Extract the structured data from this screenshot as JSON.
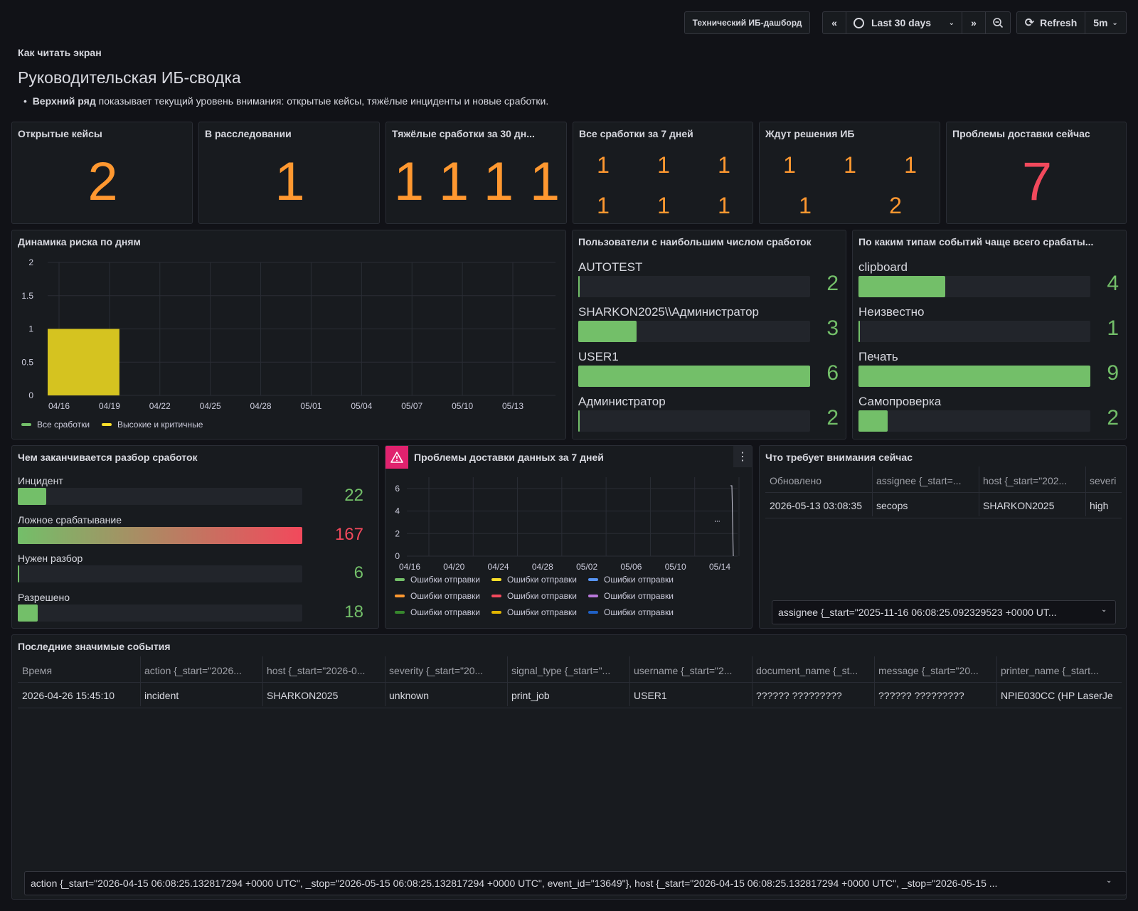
{
  "toolbar": {
    "dashboard_link": "Технический ИБ-дашборд",
    "time_range": "Last 30 days",
    "refresh_label": "Refresh",
    "refresh_interval": "5m"
  },
  "intro": {
    "section_label": "Как читать экран",
    "heading": "Руководительская ИБ-сводка",
    "bullet_bold": "Верхний ряд",
    "bullet_text": " показывает текущий уровень внимания: открытые кейсы, тяжёлые инциденты и новые сработки."
  },
  "stats": {
    "open_cases": {
      "title": "Открытые кейсы",
      "value": "2"
    },
    "investigating": {
      "title": "В расследовании",
      "value": "1"
    },
    "severe": {
      "title": "Тяжёлые сработки за 30 дн...",
      "values": [
        "1",
        "1",
        "1",
        "1"
      ]
    },
    "all7": {
      "title": "Все сработки за 7 дней",
      "values": [
        "1",
        "1",
        "1",
        "1",
        "1",
        "1"
      ]
    },
    "waiting": {
      "title": "Ждут решения ИБ",
      "values": [
        "1",
        "1",
        "1",
        "1",
        "2"
      ]
    },
    "delivery": {
      "title": "Проблемы доставки сейчас",
      "value": "7"
    }
  },
  "colors": {
    "orange": "#ff9830",
    "red": "#f2495c",
    "green": "#73bf69",
    "yellow": "#d5c320"
  },
  "risk_chart": {
    "title": "Динамика риска по дням",
    "chart_data": {
      "type": "bar",
      "x_ticks": [
        "04/16",
        "04/19",
        "04/22",
        "04/25",
        "04/28",
        "05/01",
        "05/04",
        "05/07",
        "05/10",
        "05/13"
      ],
      "y_ticks": [
        "0",
        "0.5",
        "1",
        "1.5",
        "2"
      ],
      "ylim": [
        0,
        2
      ],
      "bars": [
        {
          "start": "04/16",
          "end": "04/19",
          "value": 1,
          "series": "Высокие и критичные"
        }
      ],
      "series": [
        {
          "name": "Все сработки",
          "color": "#73bf69"
        },
        {
          "name": "Высокие и критичные",
          "color": "#fade2a"
        }
      ]
    }
  },
  "top_users": {
    "title": "Пользователи с наибольшим числом сработок",
    "max": 6,
    "items": [
      {
        "label": "AUTOTEST",
        "value": "2",
        "fraction": 0
      },
      {
        "label": "SHARKON2025\\\\Администратор",
        "value": "3",
        "fraction": 0.25
      },
      {
        "label": "USER1",
        "value": "6",
        "fraction": 1
      },
      {
        "label": "Администратор",
        "value": "2",
        "fraction": 0
      }
    ]
  },
  "event_types": {
    "title": "По каким типам событий чаще всего срабаты...",
    "items": [
      {
        "label": "clipboard",
        "value": "4",
        "fraction": 0.375
      },
      {
        "label": "Неизвестно",
        "value": "1",
        "fraction": 0
      },
      {
        "label": "Печать",
        "value": "9",
        "fraction": 1
      },
      {
        "label": "Самопроверка",
        "value": "2",
        "fraction": 0.125
      }
    ]
  },
  "resolution": {
    "title": "Чем заканчивается разбор сработок",
    "items": [
      {
        "label": "Инцидент",
        "value": "22",
        "fraction": 0.1,
        "color": "#73bf69"
      },
      {
        "label": "Ложное срабатывание",
        "value": "167",
        "fraction": 1,
        "color": "#f2495c"
      },
      {
        "label": "Нужен разбор",
        "value": "6",
        "fraction": 0,
        "color": "#73bf69"
      },
      {
        "label": "Разрешено",
        "value": "18",
        "fraction": 0.07,
        "color": "#73bf69"
      }
    ]
  },
  "delivery_chart": {
    "title": "Проблемы доставки данных за 7 дней",
    "chart_data": {
      "type": "line",
      "x_ticks": [
        "04/16",
        "04/20",
        "04/24",
        "04/28",
        "05/02",
        "05/06",
        "05/10",
        "05/14"
      ],
      "y_ticks": [
        "0",
        "2",
        "4",
        "6"
      ],
      "ylim": [
        0,
        7
      ],
      "series": [
        {
          "name": "Ошибки отправки",
          "color": "#73bf69"
        },
        {
          "name": "Ошибки отправки",
          "color": "#fade2a"
        },
        {
          "name": "Ошибки отправки",
          "color": "#5794f2"
        },
        {
          "name": "Ошибки отправки",
          "color": "#ff9830"
        },
        {
          "name": "Ошибки отправки",
          "color": "#f2495c"
        },
        {
          "name": "Ошибки отправки",
          "color": "#b877d9"
        },
        {
          "name": "Ошибки отправки",
          "color": "#37872d"
        },
        {
          "name": "Ошибки отправки",
          "color": "#e0b400"
        },
        {
          "name": "Ошибки отправки",
          "color": "#1f60c4"
        }
      ]
    }
  },
  "attention": {
    "title": "Что требует внимания сейчас",
    "columns": [
      "Обновлено",
      "assignee {_start=...",
      "host {_start=\"202...",
      "severi"
    ],
    "row": [
      "2026-05-13 03:08:35",
      "secops",
      "SHARKON2025",
      "high"
    ],
    "select": "assignee {_start=\"2025-11-16 06:08:25.092329523 +0000 UT..."
  },
  "events": {
    "title": "Последние значимые события",
    "columns": [
      "Время",
      "action {_start=\"2026...",
      "host {_start=\"2026-0...",
      "severity {_start=\"20...",
      "signal_type {_start=\"...",
      "username {_start=\"2...",
      "document_name {_st...",
      "message {_start=\"20...",
      "printer_name {_start..."
    ],
    "row": [
      "2026-04-26 15:45:10",
      "incident",
      "SHARKON2025",
      "unknown",
      "print_job",
      "USER1",
      "?????? ?????????",
      "?????? ?????????",
      "NPIE030CC (HP LaserJe"
    ],
    "select": "action {_start=\"2026-04-15 06:08:25.132817294 +0000 UTC\", _stop=\"2026-05-15 06:08:25.132817294 +0000 UTC\", event_id=\"13649\"}, host {_start=\"2026-04-15 06:08:25.132817294 +0000 UTC\", _stop=\"2026-05-15 ..."
  }
}
